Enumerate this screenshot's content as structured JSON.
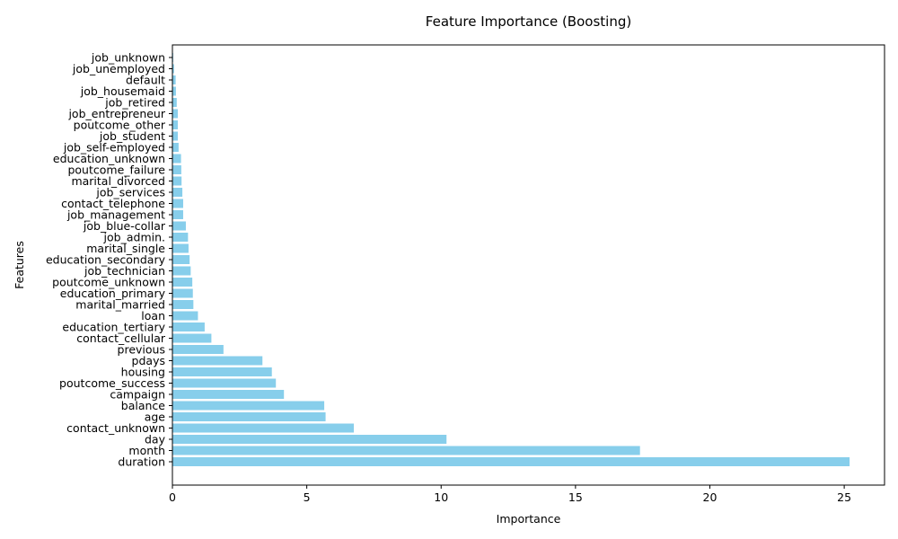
{
  "chart_data": {
    "type": "bar",
    "orientation": "horizontal",
    "title": "Feature Importance (Boosting)",
    "xlabel": "Importance",
    "ylabel": "Features",
    "xlim": [
      0,
      26.5
    ],
    "xticks": [
      0,
      5,
      10,
      15,
      20,
      25
    ],
    "grid": false,
    "legend": "none",
    "bar_color": "#87ceeb",
    "categories": [
      "duration",
      "month",
      "day",
      "contact_unknown",
      "age",
      "balance",
      "campaign",
      "poutcome_success",
      "housing",
      "pdays",
      "previous",
      "contact_cellular",
      "education_tertiary",
      "loan",
      "marital_married",
      "education_primary",
      "poutcome_unknown",
      "job_technician",
      "education_secondary",
      "marital_single",
      "job_admin.",
      "job_blue-collar",
      "job_management",
      "contact_telephone",
      "job_services",
      "marital_divorced",
      "poutcome_failure",
      "education_unknown",
      "job_self-employed",
      "job_student",
      "poutcome_other",
      "job_entrepreneur",
      "job_retired",
      "job_housemaid",
      "default",
      "job_unemployed",
      "job_unknown"
    ],
    "values": [
      25.2,
      17.4,
      10.2,
      6.75,
      5.7,
      5.65,
      4.15,
      3.85,
      3.7,
      3.35,
      1.9,
      1.45,
      1.2,
      0.95,
      0.78,
      0.76,
      0.74,
      0.68,
      0.64,
      0.6,
      0.58,
      0.5,
      0.4,
      0.4,
      0.37,
      0.34,
      0.33,
      0.32,
      0.23,
      0.2,
      0.2,
      0.2,
      0.16,
      0.13,
      0.12,
      0.06,
      0.03
    ]
  }
}
